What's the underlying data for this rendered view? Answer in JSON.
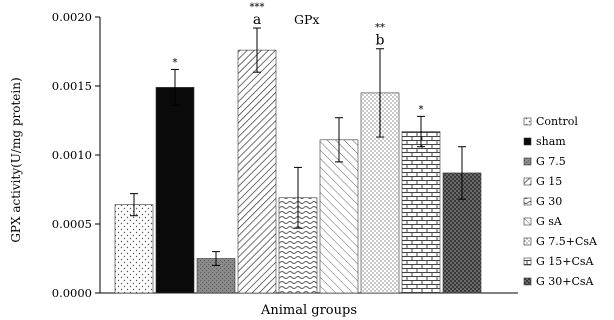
{
  "chart_data": {
    "type": "bar",
    "title": "GPx",
    "xlabel": "Animal groups",
    "ylabel": "GPX activity(U/mg protein)",
    "ylim": [
      0,
      0.002
    ],
    "y_ticks": [
      "0.0000",
      "0.0005",
      "0.0010",
      "0.0015",
      "0.0020"
    ],
    "grid": false,
    "legend_position": "right",
    "series": [
      {
        "name": "Control",
        "value": 0.00064,
        "error": 8e-05,
        "pattern": "dots-sparse",
        "annotation": ""
      },
      {
        "name": "sham",
        "value": 0.00149,
        "error": 0.00013,
        "pattern": "solid-black",
        "annotation": "*"
      },
      {
        "name": "G 7.5",
        "value": 0.00025,
        "error": 5e-05,
        "pattern": "gray-texture",
        "annotation": ""
      },
      {
        "name": "G 15",
        "value": 0.00176,
        "error": 0.00016,
        "pattern": "diag-dense",
        "annotation": "***",
        "letter": "a"
      },
      {
        "name": "G 30",
        "value": 0.00069,
        "error": 0.00022,
        "pattern": "horiz-wave",
        "annotation": ""
      },
      {
        "name": "G sA",
        "value": 0.00111,
        "error": 0.00016,
        "pattern": "diag-light",
        "annotation": ""
      },
      {
        "name": "G 7.5+CsA",
        "value": 0.00145,
        "error": 0.00032,
        "pattern": "dots-dense",
        "annotation": "**",
        "letter": "b"
      },
      {
        "name": "G 15+CsA",
        "value": 0.00117,
        "error": 0.00011,
        "pattern": "brick",
        "annotation": "*"
      },
      {
        "name": "G 30+CsA",
        "value": 0.00087,
        "error": 0.00019,
        "pattern": "checker-dark",
        "annotation": ""
      }
    ]
  }
}
